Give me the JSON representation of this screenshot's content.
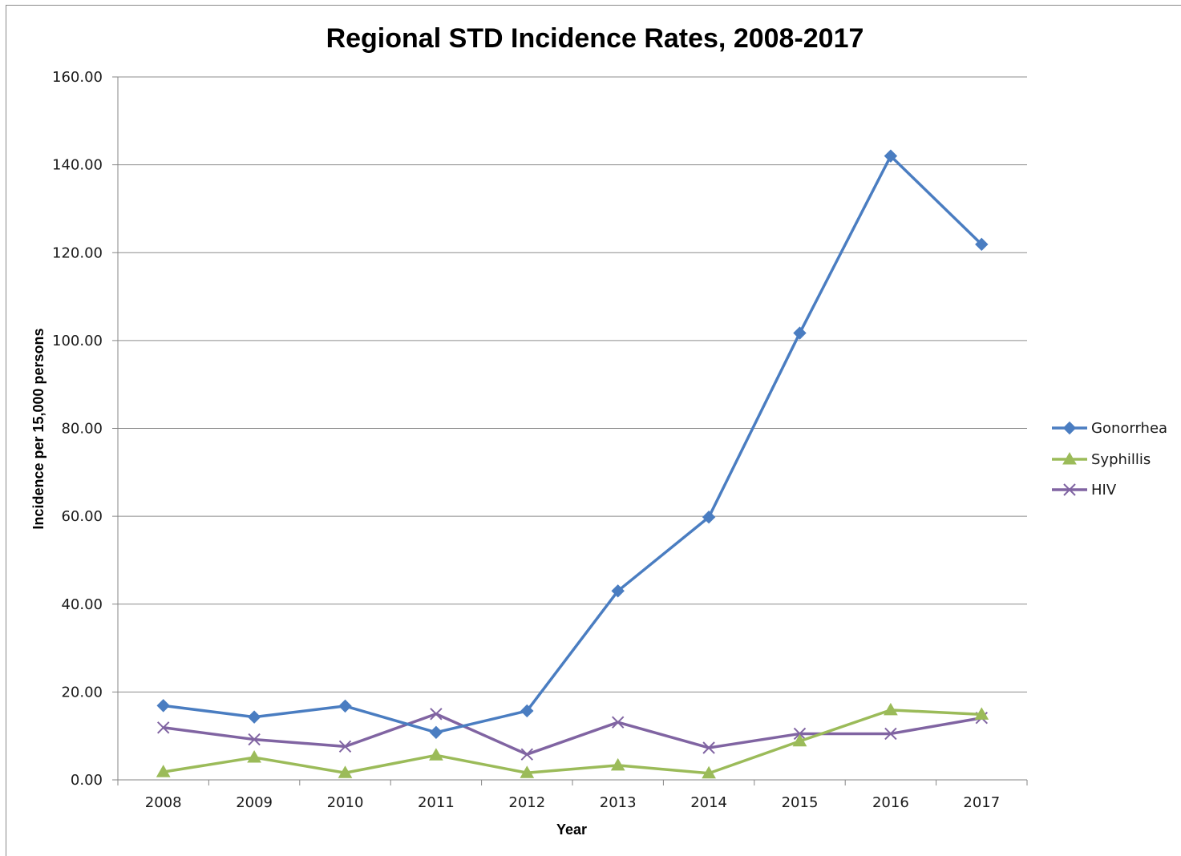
{
  "chart_data": {
    "type": "line",
    "title": "Regional STD Incidence Rates, 2008-2017",
    "xlabel": "Year",
    "ylabel": "Incidence per 15,000 persons",
    "ylim": [
      0,
      160
    ],
    "y_ticks": [
      "0.00",
      "20.00",
      "40.00",
      "60.00",
      "80.00",
      "100.00",
      "120.00",
      "140.00",
      "160.00"
    ],
    "categories": [
      "2008",
      "2009",
      "2010",
      "2011",
      "2012",
      "2013",
      "2014",
      "2015",
      "2016",
      "2017"
    ],
    "grid": "horizontal",
    "legend_position": "right",
    "series": [
      {
        "name": "Gonorrhea",
        "color": "#4a7dc1",
        "marker": "diamond",
        "values": [
          16.9,
          14.3,
          16.8,
          10.8,
          15.7,
          43.0,
          59.8,
          101.7,
          142.0,
          121.9
        ]
      },
      {
        "name": "Syphillis",
        "color": "#9bbb59",
        "marker": "triangle",
        "values": [
          1.8,
          5.1,
          1.6,
          5.6,
          1.6,
          3.3,
          1.5,
          8.8,
          15.9,
          14.9
        ]
      },
      {
        "name": "HIV",
        "color": "#8064a2",
        "marker": "x",
        "values": [
          11.9,
          9.2,
          7.6,
          15.0,
          5.8,
          13.1,
          7.3,
          10.5,
          10.5,
          14.1
        ]
      }
    ]
  }
}
